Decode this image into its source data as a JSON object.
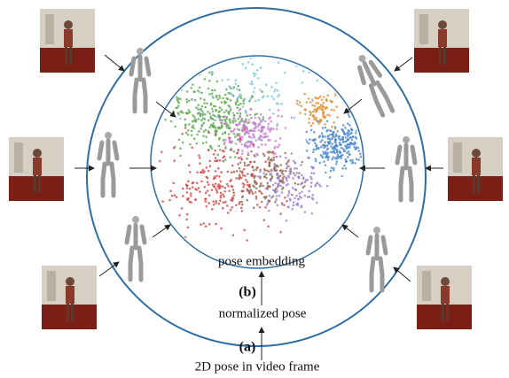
{
  "labels": {
    "embedding": "pose embedding",
    "b": "(b)",
    "normalized": "normalized pose",
    "a": "(a)",
    "frame": "2D pose in video frame"
  }
}
